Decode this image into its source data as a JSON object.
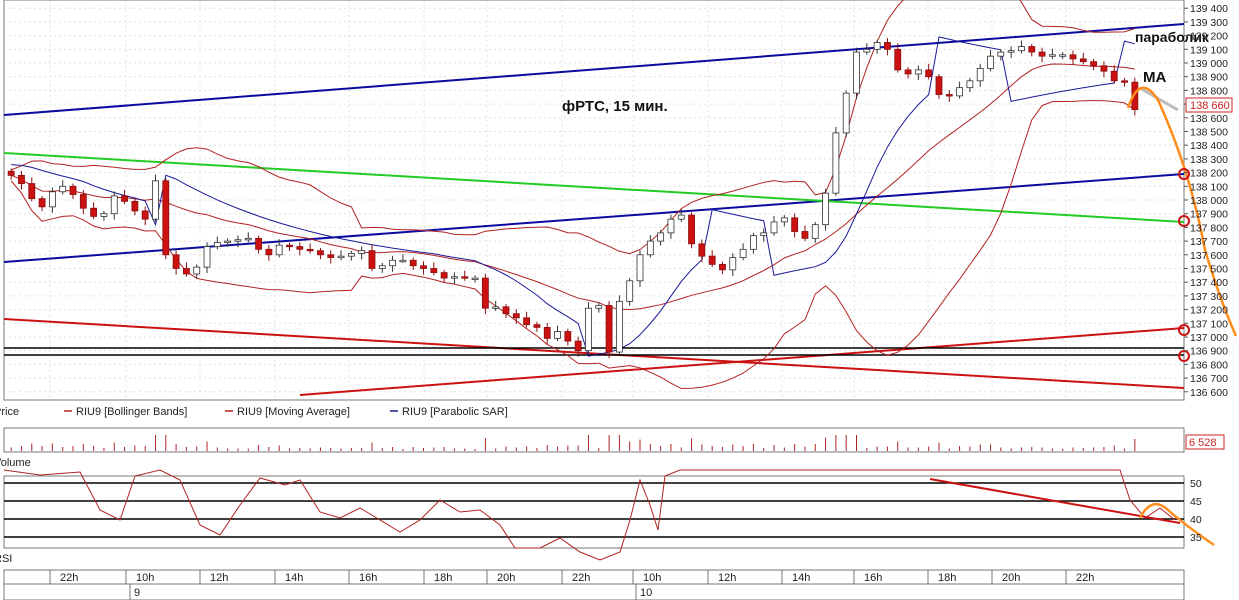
{
  "chart_data": [
    {
      "type": "candlestick",
      "annotation": "фРТС,  15 мин.",
      "price_axis": {
        "ticks": [
          "139 400",
          "139 300",
          "139 200",
          "139 100",
          "139 000",
          "138 900",
          "138 800",
          "138 700",
          "138 600",
          "138 500",
          "138 400",
          "138 300",
          "138 200",
          "138 100",
          "138 000",
          "137 900",
          "137 800",
          "137 700",
          "137 600",
          "137 500",
          "137 400",
          "137 300",
          "137 200",
          "137 100",
          "137 000",
          "136 900",
          "136 800",
          "136 700",
          "136 600"
        ],
        "ylim": [
          136540,
          139460
        ],
        "current_value": "138 660",
        "current_value_color": "#cc2222"
      },
      "time_axis": {
        "hour_labels": [
          "22h",
          "10h",
          "12h",
          "14h",
          "16h",
          "18h",
          "20h",
          "22h",
          "10h",
          "12h",
          "14h",
          "16h",
          "18h",
          "20h",
          "22h"
        ],
        "day_labels": [
          "9",
          "10"
        ]
      },
      "overlay_labels": {
        "sar": "параболик",
        "ma": "MA"
      },
      "legend": [
        {
          "label": "Price",
          "color": "#333333"
        },
        {
          "label": "RIU9 [Bollinger Bands]",
          "color": "#b22222"
        },
        {
          "label": "RIU9 [Moving Average]",
          "color": "#b22222"
        },
        {
          "label": "RIU9 [Parabolic SAR]",
          "color": "#1a1a9a"
        }
      ],
      "colors": {
        "bull_candle": "#ffffff",
        "bear_candle": "#cc1111",
        "indicators": "#b22222",
        "sar": "#1a1a9a",
        "trend_blue": "#0a0aa0",
        "trend_green": "#22cc22",
        "trend_red": "#cc1111",
        "forecast": "#ff8c1a",
        "grid": "#bfbfbf"
      },
      "close_series": [
        138180,
        138120,
        138010,
        137950,
        138060,
        138100,
        138040,
        137940,
        137880,
        137900,
        138030,
        137990,
        137920,
        137860,
        138140,
        137600,
        137500,
        137460,
        137510,
        137660,
        137690,
        137700,
        137710,
        137720,
        137640,
        137600,
        137670,
        137660,
        137640,
        137630,
        137600,
        137580,
        137590,
        137610,
        137630,
        137500,
        137520,
        137560,
        137560,
        137520,
        137500,
        137470,
        137430,
        137440,
        137430,
        137430,
        137210,
        137220,
        137170,
        137140,
        137090,
        137070,
        136990,
        137040,
        136970,
        136900,
        137210,
        137230,
        136890,
        137260,
        137410,
        137600,
        137700,
        137760,
        137860,
        137890,
        137680,
        137590,
        137530,
        137490,
        137580,
        137640,
        137740,
        137760,
        137840,
        137870,
        137770,
        137720,
        137820,
        138050,
        138490,
        138780,
        139080,
        139100,
        139150,
        139100,
        138950,
        138920,
        138950,
        138900,
        138770,
        138760,
        138820,
        138870,
        138960,
        139050,
        139080,
        139090,
        139120,
        139080,
        139050,
        139060,
        139060,
        139030,
        139010,
        138980,
        138940,
        138870,
        138860,
        138660
      ]
    },
    {
      "type": "bar",
      "panel": "Volume",
      "current_value": "6 528"
    },
    {
      "type": "line",
      "panel": "RSI",
      "ticks": [
        "50",
        "45",
        "40",
        "35"
      ]
    }
  ]
}
